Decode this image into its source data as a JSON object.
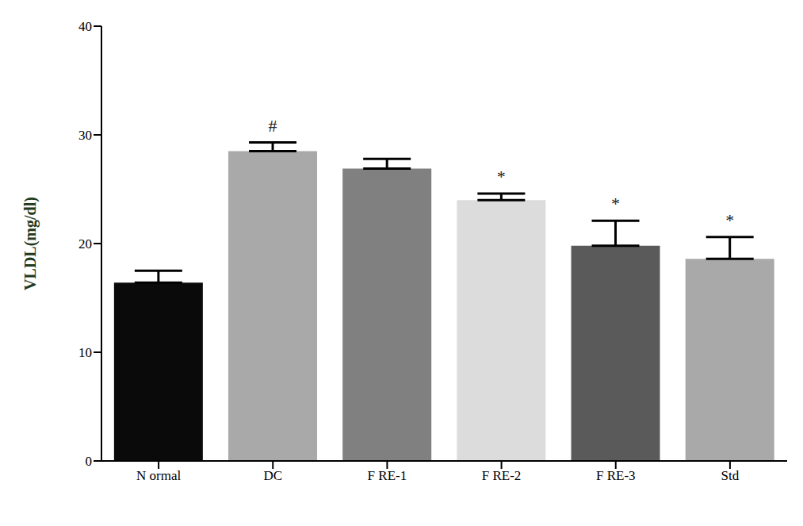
{
  "chart_data": {
    "type": "bar",
    "y_label": "VLDL(mg/dl)",
    "categories": [
      "N ormal",
      "DC",
      "F RE-1",
      "F RE-2",
      "F RE-3",
      "Std"
    ],
    "values": [
      16.4,
      28.5,
      26.9,
      24.0,
      19.8,
      18.6
    ],
    "errors": [
      1.1,
      0.8,
      0.9,
      0.6,
      2.3,
      2.0
    ],
    "colors": [
      "#0a0a0a",
      "#a9a9a9",
      "#808080",
      "#dcdcdc",
      "#5a5a5a",
      "#a9a9a9"
    ],
    "annotations": [
      {
        "category": "DC",
        "text": "#"
      },
      {
        "category": "F RE-2",
        "text": "*"
      },
      {
        "category": "F RE-3",
        "text": "*"
      },
      {
        "category": "Std",
        "text": "*"
      }
    ],
    "ylim": [
      0,
      40
    ],
    "yticks": [
      0,
      10,
      20,
      30,
      40
    ],
    "grid": false
  }
}
